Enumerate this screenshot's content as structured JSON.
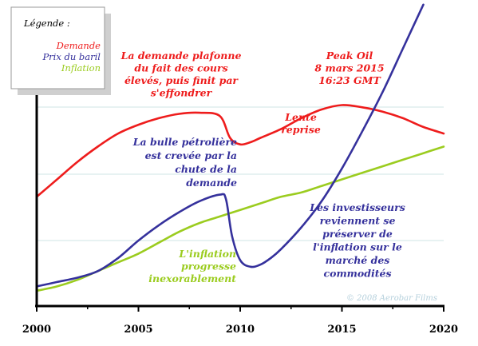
{
  "chart_data": {
    "type": "line",
    "x_ticks": [
      "2000",
      "2005",
      "2010",
      "2015",
      "2020"
    ],
    "xlim": [
      2000,
      2020
    ],
    "grid": "horizontal",
    "legend": {
      "title": "Légende :",
      "position": "top-left",
      "items": [
        {
          "label": "Demande",
          "color": "#ee1c1c"
        },
        {
          "label": "Prix du baril",
          "color": "#35319c"
        },
        {
          "label": "Inflation",
          "color": "#9bcc1f"
        }
      ]
    },
    "series": [
      {
        "name": "Demande",
        "color": "#ee1c1c",
        "x": [
          2000,
          2001,
          2002,
          2003,
          2004,
          2005,
          2006,
          2007,
          2008,
          2009,
          2009.5,
          2010,
          2010.5,
          2011,
          2012,
          2013,
          2014,
          2015,
          2016,
          2017,
          2018,
          2019,
          2020
        ],
        "y": [
          20,
          28,
          36,
          43,
          49,
          53,
          56,
          58,
          58.5,
          57,
          47,
          44,
          45,
          47,
          51,
          56,
          60,
          62,
          61,
          59,
          56,
          52,
          49
        ]
      },
      {
        "name": "Prix du baril",
        "color": "#35319c",
        "x": [
          2000,
          2001,
          2002,
          2003,
          2004,
          2005,
          2006,
          2007,
          2008,
          2009,
          2009.3,
          2009.6,
          2010,
          2010.5,
          2011,
          2011.5,
          2012,
          2013,
          2014,
          2015,
          2016,
          2017,
          2018,
          2019
        ],
        "y": [
          -21,
          -19,
          -17,
          -14,
          -8,
          0,
          7,
          13,
          18,
          21,
          19,
          2,
          -9,
          -12,
          -11,
          -8,
          -4,
          6,
          18,
          33,
          50,
          68,
          88,
          108
        ]
      },
      {
        "name": "Inflation",
        "color": "#9bcc1f",
        "x": [
          2000,
          2001,
          2002,
          2003,
          2004,
          2005,
          2006,
          2007,
          2008,
          2009,
          2010,
          2011,
          2012,
          2013,
          2014,
          2015,
          2016,
          2017,
          2018,
          2019,
          2020
        ],
        "y": [
          -23,
          -21,
          -18,
          -14,
          -10,
          -6,
          -1,
          4,
          8,
          11,
          14,
          17,
          20,
          22,
          25,
          28,
          31,
          34,
          37,
          40,
          43
        ]
      }
    ],
    "annotations": [
      {
        "lines": [
          "La demande plafonne",
          "du fait des cours",
          "élevés, puis finit par",
          "s'effondrer"
        ],
        "color": "#ee1c1c"
      },
      {
        "lines": [
          "Peak Oil",
          "8 mars 2015",
          "16:23 GMT"
        ],
        "color": "#ee1c1c"
      },
      {
        "lines": [
          "Lente",
          "reprise"
        ],
        "color": "#ee1c1c"
      },
      {
        "lines": [
          "La bulle pétrolière",
          "est crevée par la",
          "chute de la",
          "demande"
        ],
        "color": "#35319c"
      },
      {
        "lines": [
          "Les investisseurs",
          "reviennent se",
          "préserver de",
          "l'inflation sur le",
          "marché des",
          "commodités"
        ],
        "color": "#35319c"
      },
      {
        "lines": [
          "L'inflation",
          "progresse",
          "inexorablement"
        ],
        "color": "#9bcc1f"
      }
    ],
    "credit": "© 2008 Aerobar Films"
  }
}
